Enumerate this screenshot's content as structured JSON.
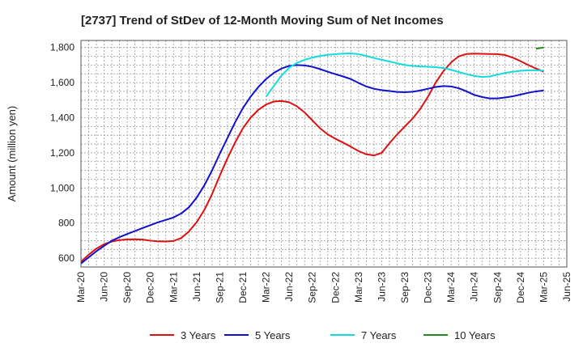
{
  "chart_data": {
    "type": "line",
    "title": "[2737]  Trend of StDev of 12-Month Moving Sum of Net Incomes",
    "ylabel": "Amount (million yen)",
    "xlabel": "",
    "ylim": [
      550,
      1840
    ],
    "yticks": [
      600,
      800,
      1000,
      1200,
      1400,
      1600,
      1800
    ],
    "ytick_labels": [
      "600",
      "800",
      "1,000",
      "1,200",
      "1,400",
      "1,600",
      "1,800"
    ],
    "xlim": [
      "2020-03",
      "2025-06"
    ],
    "xtick_labels": [
      "Mar-20",
      "Jun-20",
      "Sep-20",
      "Dec-20",
      "Mar-21",
      "Jun-21",
      "Sep-21",
      "Dec-21",
      "Mar-22",
      "Jun-22",
      "Sep-22",
      "Dec-22",
      "Mar-23",
      "Jun-23",
      "Sep-23",
      "Dec-23",
      "Mar-24",
      "Jun-24",
      "Sep-24",
      "Dec-24",
      "Mar-25",
      "Jun-25"
    ],
    "grid": true,
    "legend_position": "bottom",
    "series": [
      {
        "name": "3 Years",
        "color": "#dd1111",
        "points": [
          [
            "2020-03",
            580
          ],
          [
            "2020-04",
            620
          ],
          [
            "2020-05",
            655
          ],
          [
            "2020-06",
            680
          ],
          [
            "2020-07",
            695
          ],
          [
            "2020-08",
            703
          ],
          [
            "2020-09",
            707
          ],
          [
            "2020-10",
            708
          ],
          [
            "2020-11",
            706
          ],
          [
            "2020-12",
            700
          ],
          [
            "2021-01",
            696
          ],
          [
            "2021-02",
            695
          ],
          [
            "2021-03",
            698
          ],
          [
            "2021-04",
            715
          ],
          [
            "2021-05",
            752
          ],
          [
            "2021-06",
            805
          ],
          [
            "2021-07",
            875
          ],
          [
            "2021-08",
            965
          ],
          [
            "2021-09",
            1070
          ],
          [
            "2021-10",
            1170
          ],
          [
            "2021-11",
            1260
          ],
          [
            "2021-12",
            1340
          ],
          [
            "2022-01",
            1400
          ],
          [
            "2022-02",
            1445
          ],
          [
            "2022-03",
            1475
          ],
          [
            "2022-04",
            1492
          ],
          [
            "2022-05",
            1495
          ],
          [
            "2022-06",
            1488
          ],
          [
            "2022-07",
            1465
          ],
          [
            "2022-08",
            1430
          ],
          [
            "2022-09",
            1385
          ],
          [
            "2022-10",
            1340
          ],
          [
            "2022-11",
            1305
          ],
          [
            "2022-12",
            1280
          ],
          [
            "2023-01",
            1258
          ],
          [
            "2023-02",
            1235
          ],
          [
            "2023-03",
            1210
          ],
          [
            "2023-04",
            1192
          ],
          [
            "2023-05",
            1185
          ],
          [
            "2023-06",
            1200
          ],
          [
            "2023-07",
            1255
          ],
          [
            "2023-08",
            1305
          ],
          [
            "2023-09",
            1350
          ],
          [
            "2023-10",
            1395
          ],
          [
            "2023-11",
            1450
          ],
          [
            "2023-12",
            1520
          ],
          [
            "2024-01",
            1600
          ],
          [
            "2024-02",
            1665
          ],
          [
            "2024-03",
            1715
          ],
          [
            "2024-04",
            1750
          ],
          [
            "2024-05",
            1763
          ],
          [
            "2024-06",
            1765
          ],
          [
            "2024-07",
            1764
          ],
          [
            "2024-08",
            1763
          ],
          [
            "2024-09",
            1762
          ],
          [
            "2024-10",
            1757
          ],
          [
            "2024-11",
            1742
          ],
          [
            "2024-12",
            1722
          ],
          [
            "2025-01",
            1700
          ],
          [
            "2025-02",
            1680
          ],
          [
            "2025-03",
            1662
          ]
        ]
      },
      {
        "name": "5 Years",
        "color": "#1111cc",
        "points": [
          [
            "2020-03",
            570
          ],
          [
            "2020-04",
            605
          ],
          [
            "2020-05",
            640
          ],
          [
            "2020-06",
            670
          ],
          [
            "2020-07",
            700
          ],
          [
            "2020-08",
            720
          ],
          [
            "2020-09",
            738
          ],
          [
            "2020-10",
            755
          ],
          [
            "2020-11",
            772
          ],
          [
            "2020-12",
            788
          ],
          [
            "2021-01",
            805
          ],
          [
            "2021-02",
            818
          ],
          [
            "2021-03",
            832
          ],
          [
            "2021-04",
            855
          ],
          [
            "2021-05",
            890
          ],
          [
            "2021-06",
            945
          ],
          [
            "2021-07",
            1015
          ],
          [
            "2021-08",
            1100
          ],
          [
            "2021-09",
            1195
          ],
          [
            "2021-10",
            1285
          ],
          [
            "2021-11",
            1375
          ],
          [
            "2021-12",
            1455
          ],
          [
            "2022-01",
            1520
          ],
          [
            "2022-02",
            1575
          ],
          [
            "2022-03",
            1620
          ],
          [
            "2022-04",
            1655
          ],
          [
            "2022-05",
            1680
          ],
          [
            "2022-06",
            1695
          ],
          [
            "2022-07",
            1700
          ],
          [
            "2022-08",
            1698
          ],
          [
            "2022-09",
            1690
          ],
          [
            "2022-10",
            1677
          ],
          [
            "2022-11",
            1662
          ],
          [
            "2022-12",
            1648
          ],
          [
            "2023-01",
            1635
          ],
          [
            "2023-02",
            1620
          ],
          [
            "2023-03",
            1598
          ],
          [
            "2023-04",
            1578
          ],
          [
            "2023-05",
            1565
          ],
          [
            "2023-06",
            1557
          ],
          [
            "2023-07",
            1552
          ],
          [
            "2023-08",
            1547
          ],
          [
            "2023-09",
            1545
          ],
          [
            "2023-10",
            1548
          ],
          [
            "2023-11",
            1555
          ],
          [
            "2023-12",
            1565
          ],
          [
            "2024-01",
            1575
          ],
          [
            "2024-02",
            1580
          ],
          [
            "2024-03",
            1578
          ],
          [
            "2024-04",
            1568
          ],
          [
            "2024-05",
            1550
          ],
          [
            "2024-06",
            1530
          ],
          [
            "2024-07",
            1518
          ],
          [
            "2024-08",
            1510
          ],
          [
            "2024-09",
            1510
          ],
          [
            "2024-10",
            1515
          ],
          [
            "2024-11",
            1522
          ],
          [
            "2024-12",
            1532
          ],
          [
            "2025-01",
            1542
          ],
          [
            "2025-02",
            1550
          ],
          [
            "2025-03",
            1555
          ]
        ]
      },
      {
        "name": "7 Years",
        "color": "#11dddd",
        "points": [
          [
            "2022-03",
            1520
          ],
          [
            "2022-04",
            1580
          ],
          [
            "2022-05",
            1640
          ],
          [
            "2022-06",
            1685
          ],
          [
            "2022-07",
            1712
          ],
          [
            "2022-08",
            1730
          ],
          [
            "2022-09",
            1742
          ],
          [
            "2022-10",
            1752
          ],
          [
            "2022-11",
            1758
          ],
          [
            "2022-12",
            1762
          ],
          [
            "2023-01",
            1765
          ],
          [
            "2023-02",
            1766
          ],
          [
            "2023-03",
            1762
          ],
          [
            "2023-04",
            1752
          ],
          [
            "2023-05",
            1740
          ],
          [
            "2023-06",
            1730
          ],
          [
            "2023-07",
            1720
          ],
          [
            "2023-08",
            1710
          ],
          [
            "2023-09",
            1700
          ],
          [
            "2023-10",
            1695
          ],
          [
            "2023-11",
            1692
          ],
          [
            "2023-12",
            1690
          ],
          [
            "2024-01",
            1688
          ],
          [
            "2024-02",
            1683
          ],
          [
            "2024-03",
            1673
          ],
          [
            "2024-04",
            1660
          ],
          [
            "2024-05",
            1648
          ],
          [
            "2024-06",
            1638
          ],
          [
            "2024-07",
            1632
          ],
          [
            "2024-08",
            1635
          ],
          [
            "2024-09",
            1645
          ],
          [
            "2024-10",
            1655
          ],
          [
            "2024-11",
            1662
          ],
          [
            "2024-12",
            1667
          ],
          [
            "2025-01",
            1670
          ],
          [
            "2025-02",
            1670
          ],
          [
            "2025-03",
            1668
          ]
        ]
      },
      {
        "name": "10 Years",
        "color": "#228822",
        "points": [
          [
            "2025-02",
            1793
          ],
          [
            "2025-03",
            1800
          ]
        ]
      }
    ]
  }
}
